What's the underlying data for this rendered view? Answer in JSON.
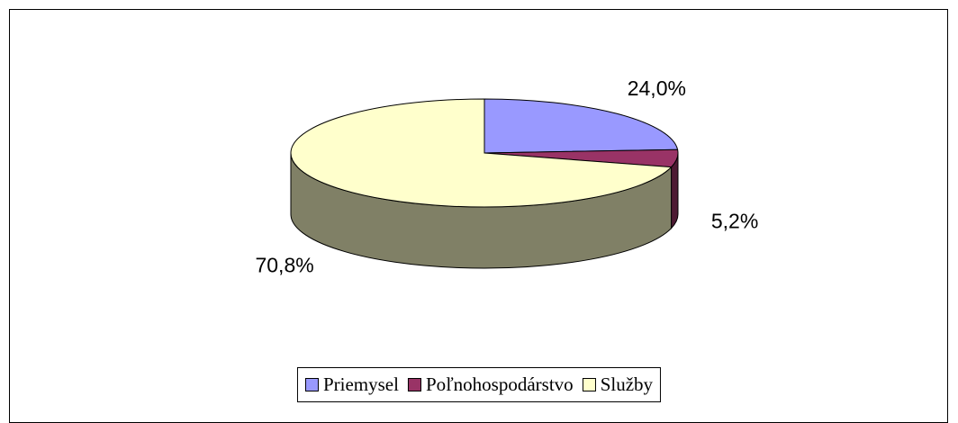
{
  "chart_data": {
    "type": "pie3d",
    "categories": [
      "Priemysel",
      "Poľnohospodárstvo",
      "Služby"
    ],
    "values": [
      24.0,
      5.2,
      70.8
    ],
    "value_labels": [
      "24,0%",
      "5,2%",
      "70,8%"
    ],
    "colors": [
      "#9999ff",
      "#993366",
      "#ffffcc"
    ],
    "legend": "bottom"
  }
}
